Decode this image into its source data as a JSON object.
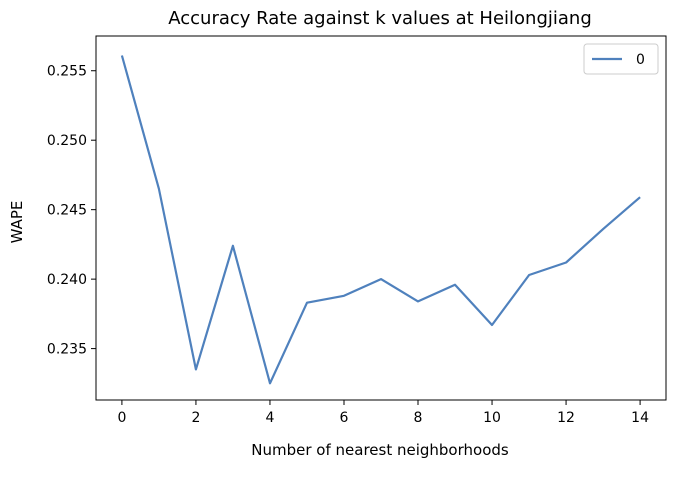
{
  "chart_data": {
    "type": "line",
    "title": "Accuracy Rate against k values at Heilongjiang",
    "xlabel": "Number of nearest neighborhoods",
    "ylabel": "WAPE",
    "xlim": [
      -0.7,
      14.7
    ],
    "ylim": [
      0.2313,
      0.2575
    ],
    "xticks": [
      0,
      2,
      4,
      6,
      8,
      10,
      12,
      14
    ],
    "xtick_labels": [
      "0",
      "2",
      "4",
      "6",
      "8",
      "10",
      "12",
      "14"
    ],
    "yticks": [
      0.235,
      0.24,
      0.245,
      0.25,
      0.255
    ],
    "ytick_labels": [
      "0.235",
      "0.240",
      "0.245",
      "0.250",
      "0.255"
    ],
    "grid": false,
    "legend_position": "upper right",
    "series": [
      {
        "name": "0",
        "color": "#4f81bd",
        "x": [
          0,
          1,
          2,
          3,
          4,
          5,
          6,
          7,
          8,
          9,
          10,
          11,
          12,
          13,
          14
        ],
        "y": [
          0.2561,
          0.2465,
          0.2335,
          0.2424,
          0.2325,
          0.2383,
          0.2388,
          0.24,
          0.2384,
          0.2396,
          0.2367,
          0.2403,
          0.2412,
          0.2436,
          0.2459
        ]
      }
    ]
  }
}
